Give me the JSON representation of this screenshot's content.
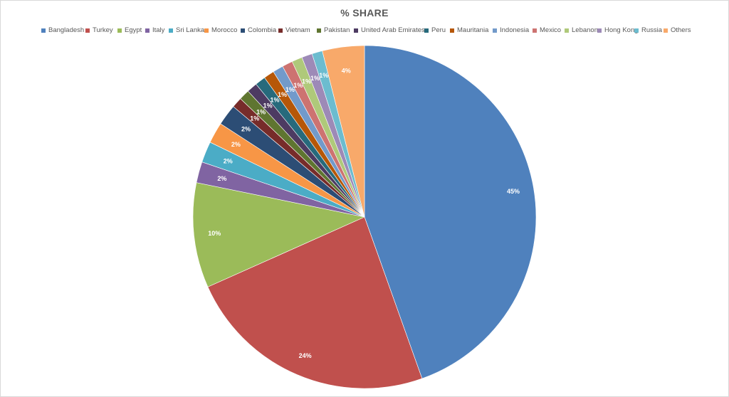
{
  "chart_data": {
    "type": "pie",
    "title": "% SHARE",
    "legend_position": "top",
    "categories": [
      "Bangladesh",
      "Turkey",
      "Egypt",
      "Italy",
      "Sri Lanka",
      "Morocco",
      "Colombia",
      "Vietnam",
      "Pakistan",
      "United Arab Emirates",
      "Peru",
      "Mauritania",
      "Indonesia",
      "Mexico",
      "Lebanon",
      "Hong Kong",
      "Russia",
      "Others"
    ],
    "values": [
      45,
      24,
      10,
      2,
      2,
      2,
      2,
      1,
      1,
      1,
      1,
      1,
      1,
      1,
      1,
      1,
      1,
      4
    ],
    "labels": [
      "45%",
      "24%",
      "10%",
      "2%",
      "2%",
      "2%",
      "2%",
      "1%",
      "1%",
      "1%",
      "1%",
      "1%",
      "1%",
      "1%",
      "1%",
      "1%",
      "1%",
      "4%"
    ],
    "colors": [
      "#4f81bd",
      "#c0504d",
      "#9bbb59",
      "#8064a2",
      "#4bacc6",
      "#f79646",
      "#2c4d75",
      "#772c2a",
      "#5f7530",
      "#4d3b62",
      "#276a7c",
      "#b65708",
      "#729aca",
      "#cd7371",
      "#afc97a",
      "#9d8ab7",
      "#6cbccf",
      "#f8a96a"
    ]
  }
}
